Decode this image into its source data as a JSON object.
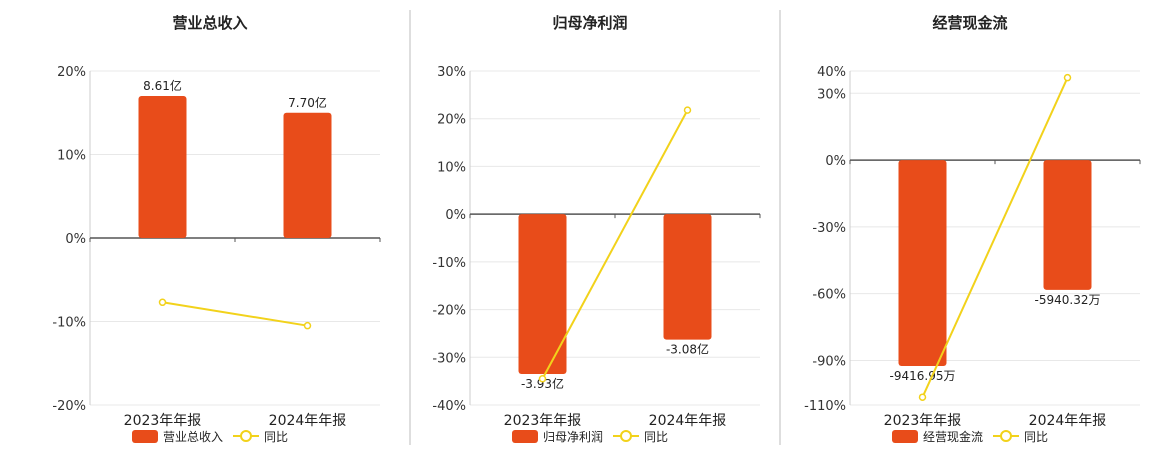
{
  "chart_data": [
    {
      "type": "bar",
      "title": "营业总收入",
      "categories": [
        "2023年年报",
        "2024年年报"
      ],
      "ylim": [
        -20,
        20
      ],
      "yticks": [
        20,
        10,
        0,
        -10,
        -20
      ],
      "ytick_labels": [
        "20%",
        "10%",
        "0%",
        "-10%",
        "-20%"
      ],
      "grid": true,
      "legend_position": "bottom",
      "series": [
        {
          "name": "营业总收入",
          "kind": "bar",
          "color": "#E84C1A",
          "values": [
            17.0,
            15.0
          ],
          "labels": [
            "8.61亿",
            "7.70亿"
          ]
        },
        {
          "name": "同比",
          "kind": "line",
          "color": "#F2D21B",
          "values": [
            -7.7,
            -10.5
          ]
        }
      ]
    },
    {
      "type": "bar",
      "title": "归母净利润",
      "categories": [
        "2023年年报",
        "2024年年报"
      ],
      "ylim": [
        -40,
        30
      ],
      "yticks": [
        30,
        20,
        10,
        0,
        -10,
        -20,
        -30,
        -40
      ],
      "ytick_labels": [
        "30%",
        "20%",
        "10%",
        "0%",
        "-10%",
        "-20%",
        "-30%",
        "-40%"
      ],
      "grid": true,
      "legend_position": "bottom",
      "series": [
        {
          "name": "归母净利润",
          "kind": "bar",
          "color": "#E84C1A",
          "values": [
            -33.5,
            -26.3
          ],
          "labels": [
            "-3.93亿",
            "-3.08亿"
          ]
        },
        {
          "name": "同比",
          "kind": "line",
          "color": "#F2D21B",
          "values": [
            -34.5,
            21.8
          ]
        }
      ]
    },
    {
      "type": "bar",
      "title": "经营现金流",
      "categories": [
        "2023年年报",
        "2024年年报"
      ],
      "ylim": [
        -110,
        40
      ],
      "yticks": [
        40,
        30,
        0,
        -30,
        -60,
        -90,
        -110
      ],
      "ytick_labels": [
        "40%",
        "30%",
        "0%",
        "-30%",
        "-60%",
        "-90%",
        "-110%"
      ],
      "grid": true,
      "legend_position": "bottom",
      "series": [
        {
          "name": "经营现金流",
          "kind": "bar",
          "color": "#E84C1A",
          "values": [
            -92.5,
            -58.3
          ],
          "labels": [
            "-9416.95万",
            "-5940.32万"
          ]
        },
        {
          "name": "同比",
          "kind": "line",
          "color": "#F2D21B",
          "values": [
            -106.5,
            37.0
          ]
        }
      ]
    }
  ]
}
